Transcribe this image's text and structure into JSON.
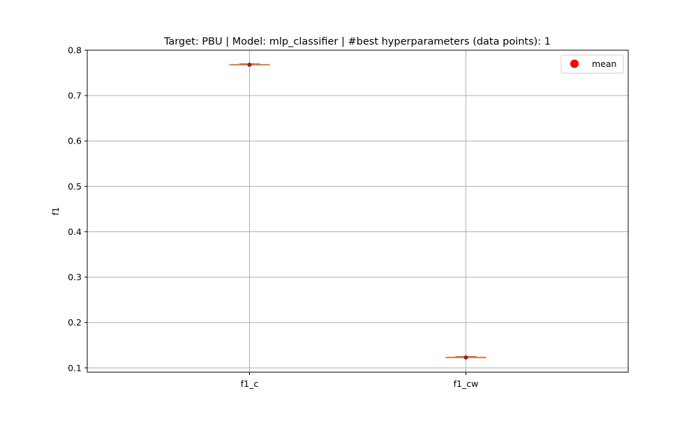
{
  "chart_data": {
    "type": "box",
    "title": "Target: PBU | Model: mlp_classifier | #best hyperparameters (data points): 1",
    "xlabel": "",
    "ylabel": "f1",
    "categories": [
      "f1_c",
      "f1_cw"
    ],
    "series": [
      {
        "name": "mean",
        "values": [
          0.768,
          0.123
        ]
      }
    ],
    "boxes": [
      {
        "category": "f1_c",
        "median": 0.768,
        "mean": 0.768
      },
      {
        "category": "f1_cw",
        "median": 0.123,
        "mean": 0.123
      }
    ],
    "ylim": [
      0.0905,
      0.8
    ],
    "yticks": [
      0.1,
      0.2,
      0.3,
      0.4,
      0.5,
      0.6,
      0.7,
      0.8
    ],
    "ytick_labels": [
      "0.1",
      "0.2",
      "0.3",
      "0.4",
      "0.5",
      "0.6",
      "0.7",
      "0.8"
    ],
    "grid": true,
    "legend": {
      "entries": [
        "mean"
      ],
      "position": "top-right"
    },
    "colors": {
      "median_line": "#e07b39",
      "mean_marker": "#ff0000",
      "grid": "#b0b0b0",
      "axes": "#000000"
    }
  }
}
